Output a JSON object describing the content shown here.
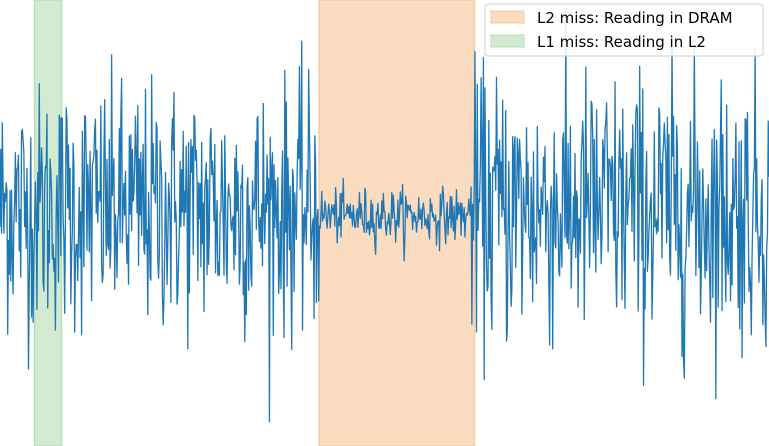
{
  "chart_data": {
    "type": "line",
    "title": "",
    "xlabel": "",
    "ylabel": "",
    "grid": false,
    "axes_visible": false,
    "xlim": [
      0,
      1000
    ],
    "ylim": [
      -1.5,
      1.5
    ],
    "legend": {
      "placement": "top-right",
      "entries": [
        {
          "label": "L2 miss: Reading in DRAM",
          "color": "#fcdcc0",
          "edge": "#f8c9a0"
        },
        {
          "label": "L1 miss: Reading in L2",
          "color": "#d2ebd0",
          "edge": "#b8dfb4"
        }
      ]
    },
    "regions": [
      {
        "name": "L1 miss: Reading in L2",
        "x_start": 45,
        "x_end": 80,
        "color": "#d2ebd0",
        "edge": "#b8dfb4"
      },
      {
        "name": "L2 miss: Reading in DRAM",
        "x_start": 415,
        "x_end": 617,
        "color": "#fcdcc0",
        "edge": "#f8c9a0"
      }
    ],
    "series": [
      {
        "color": "#1f77b4",
        "segments": [
          {
            "x_start": 0,
            "x_end": 415,
            "center": 0.1,
            "amplitude": 0.55
          },
          {
            "x_start": 415,
            "x_end": 612,
            "center": 0.05,
            "amplitude": 0.12
          },
          {
            "x_start": 612,
            "x_end": 1000,
            "center": 0.1,
            "amplitude": 0.6
          }
        ],
        "points": 1000
      }
    ]
  }
}
